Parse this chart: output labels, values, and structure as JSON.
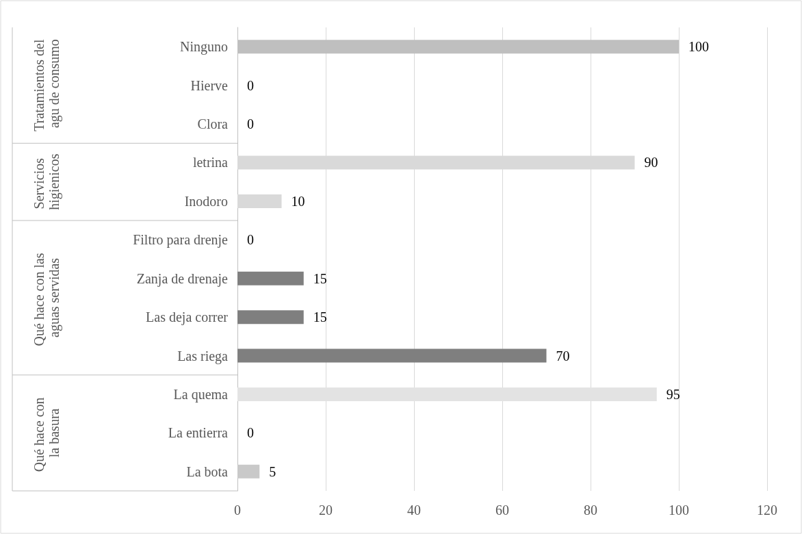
{
  "chart_data": {
    "type": "bar",
    "orientation": "horizontal",
    "categories": [
      "Ninguno",
      "Hierve",
      "Clora",
      "letrina",
      "Inodoro",
      "Filtro para drenje",
      "Zanja de drenaje",
      "Las deja correr",
      "Las riega",
      "La quema",
      "La entierra",
      "La bota"
    ],
    "values": [
      100,
      0,
      0,
      90,
      10,
      0,
      15,
      15,
      70,
      95,
      0,
      5
    ],
    "colors": [
      "#bfbfbf",
      "#bfbfbf",
      "#bfbfbf",
      "#d9d9d9",
      "#d9d9d9",
      "#7f7f7f",
      "#7f7f7f",
      "#7f7f7f",
      "#7f7f7f",
      "#e3e3e3",
      "#c9c9c9",
      "#c9c9c9"
    ],
    "xlim": [
      0,
      120
    ],
    "xticks": [
      0,
      20,
      40,
      60,
      80,
      100,
      120
    ],
    "grid": "x",
    "data_labels": true,
    "annotations": [
      "Tratamientos del agu de consumo",
      "Servicios higienicos",
      "Qué hace con las aguas servidas",
      "Qué hace con la basura"
    ]
  }
}
